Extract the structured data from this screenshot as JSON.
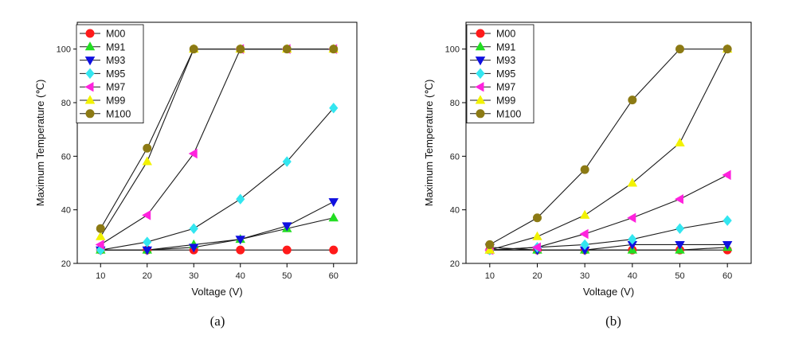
{
  "chart_data": [
    {
      "type": "line",
      "caption": "(a)",
      "xlabel": "Voltage (V)",
      "ylabel": "Maximum Temperature (℃)",
      "x": [
        10,
        20,
        30,
        40,
        50,
        60
      ],
      "xlim": [
        5,
        65
      ],
      "ylim": [
        20,
        110
      ],
      "xticks": [
        10,
        20,
        30,
        40,
        50,
        60
      ],
      "yticks": [
        20,
        40,
        60,
        80,
        100
      ],
      "legend_position": "top-left",
      "grid": false,
      "series": [
        {
          "name": "M00",
          "color": "#ff1a1a",
          "marker": "circle",
          "values": [
            25,
            25,
            25,
            25,
            25,
            25
          ]
        },
        {
          "name": "M91",
          "color": "#22dd22",
          "marker": "triangle-up",
          "values": [
            25,
            25,
            27,
            29,
            33,
            37
          ]
        },
        {
          "name": "M93",
          "color": "#1010e0",
          "marker": "triangle-down",
          "values": [
            25,
            25,
            26,
            29,
            34,
            43
          ]
        },
        {
          "name": "M95",
          "color": "#33e6f0",
          "marker": "diamond",
          "values": [
            25,
            28,
            33,
            44,
            58,
            78
          ]
        },
        {
          "name": "M97",
          "color": "#ff22dd",
          "marker": "triangle-left",
          "values": [
            27,
            38,
            61,
            100,
            100,
            100
          ]
        },
        {
          "name": "M99",
          "color": "#f2f200",
          "marker": "triangle-up",
          "values": [
            30,
            58,
            100,
            100,
            100,
            100
          ]
        },
        {
          "name": "M100",
          "color": "#8c7a14",
          "marker": "circle",
          "values": [
            33,
            63,
            100,
            100,
            100,
            100
          ]
        }
      ]
    },
    {
      "type": "line",
      "caption": "(b)",
      "xlabel": "Voltage (V)",
      "ylabel": "Maximum Temperature (℃)",
      "x": [
        10,
        20,
        30,
        40,
        50,
        60
      ],
      "xlim": [
        5,
        65
      ],
      "ylim": [
        20,
        110
      ],
      "xticks": [
        10,
        20,
        30,
        40,
        50,
        60
      ],
      "yticks": [
        20,
        40,
        60,
        80,
        100
      ],
      "legend_position": "top-left",
      "grid": false,
      "series": [
        {
          "name": "M00",
          "color": "#ff1a1a",
          "marker": "circle",
          "values": [
            25,
            25,
            25,
            25,
            25,
            25
          ]
        },
        {
          "name": "M91",
          "color": "#22dd22",
          "marker": "triangle-up",
          "values": [
            25,
            25,
            25,
            25,
            25,
            26
          ]
        },
        {
          "name": "M93",
          "color": "#1010e0",
          "marker": "triangle-down",
          "values": [
            26,
            25,
            25,
            27,
            27,
            27
          ]
        },
        {
          "name": "M95",
          "color": "#33e6f0",
          "marker": "diamond",
          "values": [
            25,
            26,
            27,
            29,
            33,
            36
          ]
        },
        {
          "name": "M97",
          "color": "#ff22dd",
          "marker": "triangle-left",
          "values": [
            25,
            26,
            31,
            37,
            44,
            53
          ]
        },
        {
          "name": "M99",
          "color": "#f2f200",
          "marker": "triangle-up",
          "values": [
            25,
            30,
            38,
            50,
            65,
            100
          ]
        },
        {
          "name": "M100",
          "color": "#8c7a14",
          "marker": "circle",
          "values": [
            27,
            37,
            55,
            81,
            100,
            100
          ]
        }
      ]
    }
  ]
}
